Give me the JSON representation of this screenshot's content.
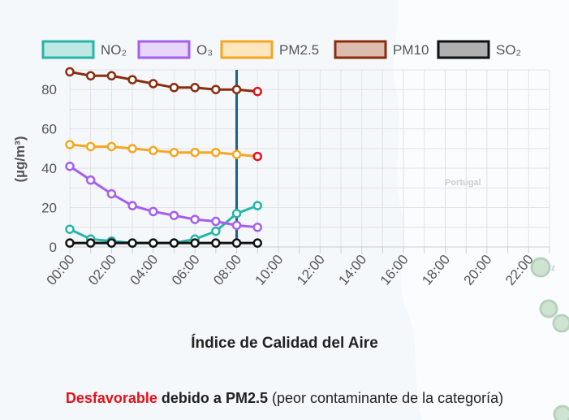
{
  "map": {
    "label_country": "Portugal",
    "label_partial": "oz"
  },
  "chart_data": {
    "type": "line",
    "title": "Índice de Calidad del Aire",
    "ylabel": "(µg/m³)",
    "xlabel": "",
    "ylim": [
      0,
      90
    ],
    "yticks": [
      0,
      20,
      40,
      60,
      80
    ],
    "x_ticks": [
      "00:00",
      "02:00",
      "04:00",
      "06:00",
      "08:00",
      "10:00",
      "12:00",
      "14:00",
      "16:00",
      "18:00",
      "20:00",
      "22:00"
    ],
    "x_hours": [
      0,
      1,
      2,
      3,
      4,
      5,
      6,
      7,
      8,
      9
    ],
    "xlim_hours": [
      0,
      23
    ],
    "current_hour": 8,
    "current_line_color": "#1d5f7e",
    "grid": true,
    "legend_position": "top",
    "series": [
      {
        "name": "NO₂",
        "color": "#26b5a8",
        "fill": "#bfe8e4",
        "values": [
          9,
          4,
          3,
          2,
          2,
          2,
          4,
          8,
          17,
          21
        ]
      },
      {
        "name": "O₃",
        "color": "#a55ef0",
        "fill": "#e6d6fb",
        "values": [
          41,
          34,
          27,
          21,
          18,
          16,
          14,
          13,
          11,
          10
        ]
      },
      {
        "name": "PM2.5",
        "color": "#f5a623",
        "fill": "#fde6bd",
        "values": [
          52,
          51,
          51,
          50,
          49,
          48,
          48,
          48,
          47,
          46
        ]
      },
      {
        "name": "PM10",
        "color": "#8b2c0e",
        "fill": "#dcbcae",
        "values": [
          89,
          87,
          87,
          85,
          83,
          81,
          81,
          80,
          80,
          79
        ]
      },
      {
        "name": "SO₂",
        "color": "#111111",
        "fill": "#b0b0b0",
        "values": [
          2,
          2,
          2,
          2,
          2,
          2,
          2,
          2,
          2,
          2
        ]
      }
    ],
    "last_point_marker_color": "#e8101a"
  },
  "footer": {
    "category": "Desfavorable",
    "because": "debido a",
    "pollutant": "PM2.5",
    "note": "(peor contaminante de la categoría)"
  }
}
